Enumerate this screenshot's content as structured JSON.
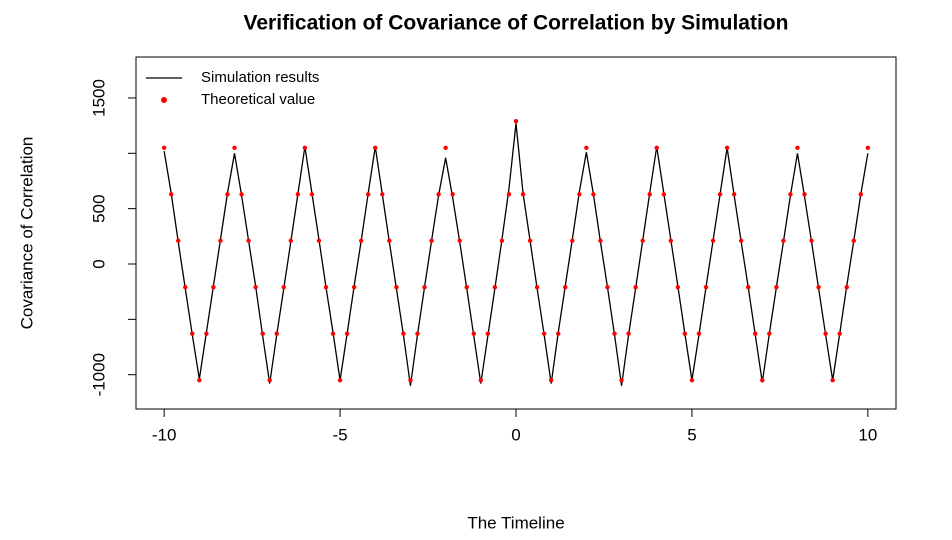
{
  "chart_data": {
    "type": "line",
    "title": "Verification of Covariance of Correlation by Simulation",
    "xlabel": "The Timeline",
    "ylabel": "Covariance of Correlation",
    "xlim": [
      -10.8,
      10.8
    ],
    "ylim": [
      -1310,
      1870
    ],
    "xticks": [
      -10,
      -5,
      0,
      5,
      10
    ],
    "yticks": [
      -1000,
      {
        "value": -500,
        "label": null
      },
      0,
      500,
      {
        "value": 1000,
        "label": null
      },
      1500
    ],
    "legend": "top-left",
    "x": [
      -10,
      -9.8,
      -9.6,
      -9.4,
      -9.2,
      -9,
      -8.8,
      -8.6,
      -8.4,
      -8.2,
      -8,
      -7.8,
      -7.6,
      -7.4,
      -7.2,
      -7,
      -6.8,
      -6.6,
      -6.4,
      -6.2,
      -6,
      -5.8,
      -5.6,
      -5.4,
      -5.2,
      -5,
      -4.8,
      -4.6,
      -4.4,
      -4.2,
      -4,
      -3.8,
      -3.6,
      -3.4,
      -3.2,
      -3,
      -2.8,
      -2.6,
      -2.4,
      -2.2,
      -2,
      -1.8,
      -1.6,
      -1.4,
      -1.2,
      -1,
      -0.8,
      -0.6,
      -0.4,
      -0.2,
      0,
      0.2,
      0.4,
      0.6,
      0.8,
      1,
      1.2,
      1.4,
      1.6,
      1.8,
      2,
      2.2,
      2.4,
      2.6,
      2.8,
      3,
      3.2,
      3.4,
      3.6,
      3.8,
      4,
      4.2,
      4.4,
      4.6,
      4.8,
      5,
      5.2,
      5.4,
      5.6,
      5.8,
      6,
      6.2,
      6.4,
      6.6,
      6.8,
      7,
      7.2,
      7.4,
      7.6,
      7.8,
      8,
      8.2,
      8.4,
      8.6,
      8.8,
      9,
      9.2,
      9.4,
      9.6,
      9.8,
      10
    ],
    "series": [
      {
        "name": "Simulation results",
        "color": "#000000",
        "style": "line",
        "values": [
          1020,
          640,
          200,
          -220,
          -640,
          -1040,
          -620,
          -200,
          220,
          640,
          1000,
          620,
          210,
          -200,
          -650,
          -1080,
          -640,
          -220,
          200,
          630,
          1060,
          640,
          220,
          -210,
          -620,
          -1050,
          -630,
          -200,
          210,
          640,
          1060,
          630,
          200,
          -220,
          -640,
          -1100,
          -640,
          -210,
          210,
          620,
          960,
          600,
          200,
          -220,
          -650,
          -1080,
          -650,
          -220,
          220,
          680,
          1270,
          640,
          210,
          -220,
          -640,
          -1080,
          -620,
          -200,
          220,
          650,
          1010,
          630,
          200,
          -210,
          -640,
          -1100,
          -640,
          -220,
          210,
          640,
          1060,
          640,
          220,
          -200,
          -630,
          -1050,
          -640,
          -210,
          210,
          630,
          1050,
          620,
          200,
          -210,
          -640,
          -1070,
          -630,
          -210,
          200,
          620,
          1000,
          610,
          200,
          -220,
          -640,
          -1050,
          -630,
          -200,
          210,
          630,
          1000
        ]
      },
      {
        "name": "Theoretical value",
        "color": "#ff0000",
        "style": "points",
        "values": [
          1050,
          630,
          210,
          -210,
          -630,
          -1050,
          -630,
          -210,
          210,
          630,
          1050,
          630,
          210,
          -210,
          -630,
          -1050,
          -630,
          -210,
          210,
          630,
          1050,
          630,
          210,
          -210,
          -630,
          -1050,
          -630,
          -210,
          210,
          630,
          1050,
          630,
          210,
          -210,
          -630,
          -1050,
          -630,
          -210,
          210,
          630,
          1050,
          630,
          210,
          -210,
          -630,
          -1050,
          -630,
          -210,
          210,
          630,
          1290,
          630,
          210,
          -210,
          -630,
          -1050,
          -630,
          -210,
          210,
          630,
          1050,
          630,
          210,
          -210,
          -630,
          -1050,
          -630,
          -210,
          210,
          630,
          1050,
          630,
          210,
          -210,
          -630,
          -1050,
          -630,
          -210,
          210,
          630,
          1050,
          630,
          210,
          -210,
          -630,
          -1050,
          -630,
          -210,
          210,
          630,
          1050,
          630,
          210,
          -210,
          -630,
          -1050,
          -630,
          -210,
          210,
          630,
          1050
        ]
      }
    ]
  }
}
